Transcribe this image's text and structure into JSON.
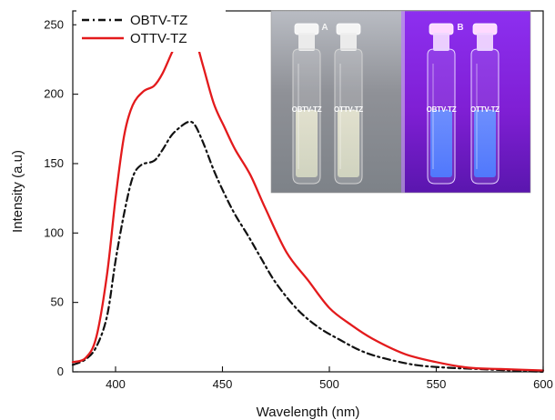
{
  "chart_data": {
    "type": "line",
    "xlabel": "Wavelength (nm)",
    "ylabel": "Intensity (a.u)",
    "xlim": [
      380,
      600
    ],
    "ylim": [
      0,
      260
    ],
    "x_ticks": [
      400,
      450,
      500,
      550,
      600
    ],
    "y_ticks": [
      0,
      50,
      100,
      150,
      200,
      250
    ],
    "grid": false,
    "legend_position": "top-left",
    "series": [
      {
        "name": "OBTV-TZ",
        "color": "#111111",
        "line_style": "dash-dot",
        "x": [
          380,
          386,
          391,
          396,
          400,
          404,
          408,
          412,
          418,
          422,
          426,
          430,
          434,
          437,
          441,
          446,
          451,
          456,
          462,
          468,
          475,
          485,
          495,
          505,
          515,
          525,
          540,
          555,
          570,
          585,
          600
        ],
        "y": [
          5,
          9,
          18,
          40,
          80,
          114,
          140,
          149,
          152,
          160,
          170,
          176,
          180,
          178,
          165,
          145,
          128,
          113,
          98,
          82,
          64,
          45,
          32,
          23,
          15,
          10,
          5,
          3,
          2,
          1,
          0
        ]
      },
      {
        "name": "OTTV-TZ",
        "color": "#e31a1c",
        "line_style": "solid",
        "x": [
          380,
          386,
          391,
          396,
          400,
          404,
          408,
          413,
          418,
          422,
          427,
          431,
          434,
          437,
          441,
          446,
          451,
          456,
          463,
          470,
          480,
          490,
          500,
          510,
          520,
          535,
          550,
          565,
          580,
          600
        ],
        "y": [
          7,
          10,
          25,
          70,
          125,
          170,
          192,
          202,
          206,
          215,
          232,
          242,
          244,
          241,
          220,
          193,
          176,
          160,
          142,
          118,
          86,
          66,
          46,
          34,
          24,
          13,
          7,
          3,
          2,
          1
        ]
      }
    ]
  },
  "inset": {
    "label_a": "A",
    "label_b": "B",
    "vial_labels": [
      "OBTV-TZ",
      "OTTV-TZ",
      "OBTV-TZ",
      "OTTV-TZ"
    ],
    "panel_a_color": "#8f9197",
    "panel_b_color": "#7f1fd4",
    "liquid_a_color": "#dfe2c8",
    "liquid_b_color": "#4f7cff"
  }
}
